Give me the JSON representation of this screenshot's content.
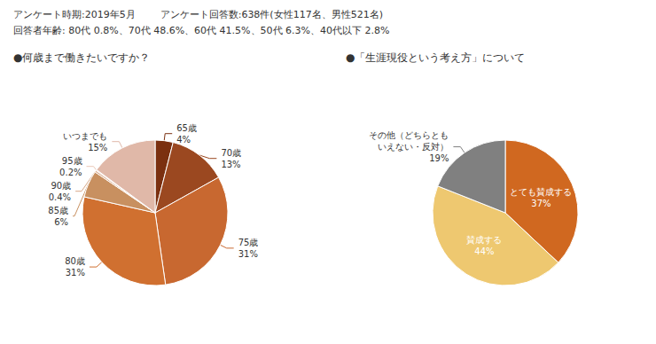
{
  "annotations": [
    "アンケート時期:2019年5月        アンケート回答数:638件(女性117名、男性521名)",
    "回答者年齢: 80代 0.8%、70代 48.6%、60代 41.5%、50代 6.3%、40代以下 2.8%"
  ],
  "chart_data": [
    {
      "type": "pie",
      "title": "●何歳まで働きたいですか？",
      "categories": [
        "65歳",
        "70歳",
        "75歳",
        "80歳",
        "85歳",
        "90歳",
        "95歳",
        "いつまでも"
      ],
      "values": [
        4,
        13,
        31,
        31,
        6,
        0.4,
        0.2,
        15
      ],
      "value_labels": [
        "4%",
        "13%",
        "31%",
        "31%",
        "6%",
        "0.4%",
        "0.2%",
        "15%"
      ],
      "colors": [
        "#7B3010",
        "#9B4820",
        "#C86830",
        "#D07030",
        "#C89060",
        "#D8A888",
        "#EAC8B8",
        "#E0B8A8"
      ],
      "data_labels": true
    },
    {
      "type": "pie",
      "title": "●「生涯現役という考え方」について",
      "categories": [
        "とても賛成する",
        "賛成する",
        "その他（どちらとも\nいえない・反対）"
      ],
      "values": [
        37,
        44,
        19
      ],
      "value_labels": [
        "37%",
        "44%",
        "19%"
      ],
      "colors": [
        "#D06820",
        "#EEC870",
        "#808080"
      ],
      "data_labels": true
    }
  ]
}
